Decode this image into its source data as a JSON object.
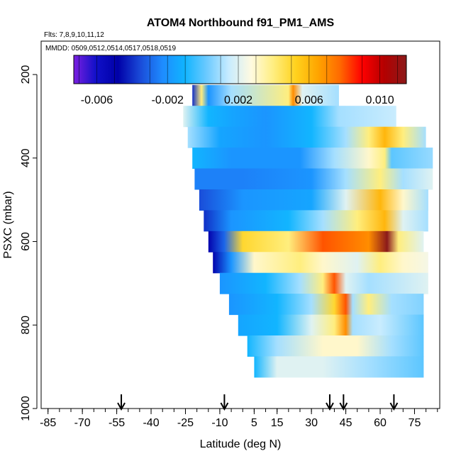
{
  "chart_data": {
    "type": "heatmap",
    "title": "ATOM4 Northbound f91_PM1_AMS",
    "subtitle_flights": "Flts: 7,8,9,10,11,12",
    "subtitle_dates": "MMDD: 0509,0512,0514,0517,0518,0519",
    "xlabel": "Latitude (deg N)",
    "ylabel": "PSXC (mbar)",
    "xlim": [
      -88,
      86
    ],
    "ylim": [
      1000,
      120
    ],
    "x_ticks": [
      -85,
      -70,
      -55,
      -40,
      -25,
      -10,
      5,
      15,
      30,
      45,
      60,
      75
    ],
    "x_tick_labels": [
      "-85",
      "-70",
      "-55",
      "-40",
      "-25",
      "-10",
      "5",
      "15",
      "30",
      "45",
      "60",
      "75"
    ],
    "y_ticks": [
      200,
      400,
      600,
      800,
      1000
    ],
    "y_tick_labels": [
      "200",
      "400",
      "600",
      "800",
      "1000"
    ],
    "colorbar": {
      "range": [
        -0.0073,
        0.0115
      ],
      "ticks": [
        -0.006,
        -0.002,
        0.002,
        0.006,
        0.01
      ],
      "tick_labels": [
        "-0.006",
        "-0.002",
        "0.002",
        "0.006",
        "0.010"
      ],
      "colors": [
        "#7b1fe0",
        "#1010c8",
        "#0000a8",
        "#1a4bd8",
        "#1e8cff",
        "#10b4ff",
        "#6ccaff",
        "#c8ecff",
        "#fffae0",
        "#ffee80",
        "#ffd21e",
        "#ffa500",
        "#ff6a00",
        "#ff0000",
        "#b40000",
        "#8b1a1a"
      ]
    },
    "arrows_latitude": [
      -53,
      -8,
      38,
      44,
      66
    ],
    "rows": [
      {
        "p": 250,
        "x0": -22,
        "x1": 42,
        "stops": [
          [
            -22,
            -0.004
          ],
          [
            -18,
            0.004
          ],
          [
            -15,
            -0.002
          ],
          [
            -5,
            0.001
          ],
          [
            20,
            0.004
          ],
          [
            22,
            0.007
          ],
          [
            26,
            0.002
          ],
          [
            42,
            0.001
          ]
        ]
      },
      {
        "p": 300,
        "x0": -26,
        "x1": 67,
        "stops": [
          [
            -26,
            0.002
          ],
          [
            -15,
            -0.001
          ],
          [
            -5,
            -0.0015
          ],
          [
            10,
            -0.002
          ],
          [
            30,
            -0.001
          ],
          [
            42,
            0.001
          ],
          [
            67,
            0.0015
          ]
        ]
      },
      {
        "p": 350,
        "x0": -24,
        "x1": 80,
        "stops": [
          [
            -24,
            0.001
          ],
          [
            -10,
            -0.0015
          ],
          [
            10,
            -0.002
          ],
          [
            30,
            -0.001
          ],
          [
            45,
            0.001
          ],
          [
            55,
            0.004
          ],
          [
            62,
            0.006
          ],
          [
            70,
            0.004
          ],
          [
            80,
            0.001
          ]
        ]
      },
      {
        "p": 400,
        "x0": -22,
        "x1": 83,
        "stops": [
          [
            -22,
            -0.001
          ],
          [
            -5,
            -0.002
          ],
          [
            25,
            -0.002
          ],
          [
            40,
            0.001
          ],
          [
            55,
            0.003
          ],
          [
            62,
            0.004
          ],
          [
            65,
            0.0
          ],
          [
            83,
            0.0008
          ]
        ]
      },
      {
        "p": 450,
        "x0": -21,
        "x1": 83,
        "stops": [
          [
            -21,
            -0.0025
          ],
          [
            0,
            -0.0025
          ],
          [
            30,
            -0.002
          ],
          [
            45,
            0.001
          ],
          [
            60,
            0.004
          ],
          [
            70,
            0.001
          ],
          [
            83,
            0.002
          ]
        ]
      },
      {
        "p": 500,
        "x0": -19,
        "x1": 81,
        "stops": [
          [
            -19,
            -0.0035
          ],
          [
            0,
            -0.002
          ],
          [
            30,
            -0.0015
          ],
          [
            45,
            0.002
          ],
          [
            60,
            0.006
          ],
          [
            70,
            0.003
          ],
          [
            81,
            0.001
          ]
        ]
      },
      {
        "p": 550,
        "x0": -17,
        "x1": 81,
        "stops": [
          [
            -17,
            -0.004
          ],
          [
            -5,
            -0.002
          ],
          [
            20,
            -0.001
          ],
          [
            35,
            0.001
          ],
          [
            50,
            0.004
          ],
          [
            62,
            0.006
          ],
          [
            70,
            0.002
          ],
          [
            81,
            0.001
          ]
        ]
      },
      {
        "p": 600,
        "x0": -15,
        "x1": 79,
        "stops": [
          [
            -15,
            -0.005
          ],
          [
            -8,
            -0.003
          ],
          [
            0,
            0.005
          ],
          [
            20,
            0.004
          ],
          [
            35,
            0.008
          ],
          [
            55,
            0.007
          ],
          [
            63,
            0.012
          ],
          [
            68,
            0.004
          ],
          [
            79,
            0.002
          ]
        ]
      },
      {
        "p": 650,
        "x0": -13,
        "x1": 81,
        "stops": [
          [
            -13,
            -0.005
          ],
          [
            -5,
            -0.002
          ],
          [
            5,
            0.003
          ],
          [
            25,
            0.004
          ],
          [
            35,
            0.003
          ],
          [
            50,
            0.002
          ],
          [
            60,
            0.004
          ],
          [
            70,
            0.003
          ],
          [
            81,
            0.0025
          ]
        ]
      },
      {
        "p": 700,
        "x0": -10,
        "x1": 81,
        "stops": [
          [
            -10,
            -0.002
          ],
          [
            10,
            -0.001
          ],
          [
            25,
            0.001
          ],
          [
            35,
            0.004
          ],
          [
            40,
            0.008
          ],
          [
            45,
            0.002
          ],
          [
            55,
            0.001
          ],
          [
            81,
            0.002
          ]
        ]
      },
      {
        "p": 750,
        "x0": -6,
        "x1": 79,
        "stops": [
          [
            -6,
            -0.002
          ],
          [
            15,
            -0.001
          ],
          [
            30,
            0.001
          ],
          [
            40,
            0.005
          ],
          [
            45,
            0.008
          ],
          [
            48,
            0.001
          ],
          [
            55,
            0.004
          ],
          [
            65,
            0.001
          ],
          [
            79,
            0.0005
          ]
        ]
      },
      {
        "p": 800,
        "x0": -2,
        "x1": 79,
        "stops": [
          [
            -2,
            -0.0015
          ],
          [
            15,
            -0.001
          ],
          [
            30,
            0.002
          ],
          [
            40,
            0.004
          ],
          [
            45,
            0.007
          ],
          [
            48,
            0.001
          ],
          [
            60,
            0.0015
          ],
          [
            79,
            0.0
          ]
        ]
      },
      {
        "p": 850,
        "x0": 2,
        "x1": 79,
        "stops": [
          [
            2,
            -0.001
          ],
          [
            15,
            0.001
          ],
          [
            35,
            0.003
          ],
          [
            50,
            0.003
          ],
          [
            65,
            0.001
          ],
          [
            79,
            0.0
          ]
        ]
      },
      {
        "p": 900,
        "x0": 5,
        "x1": 79,
        "stops": [
          [
            5,
            -0.001
          ],
          [
            15,
            0.002
          ],
          [
            35,
            0.002
          ],
          [
            55,
            0.001
          ],
          [
            79,
            0.0
          ]
        ]
      }
    ]
  }
}
